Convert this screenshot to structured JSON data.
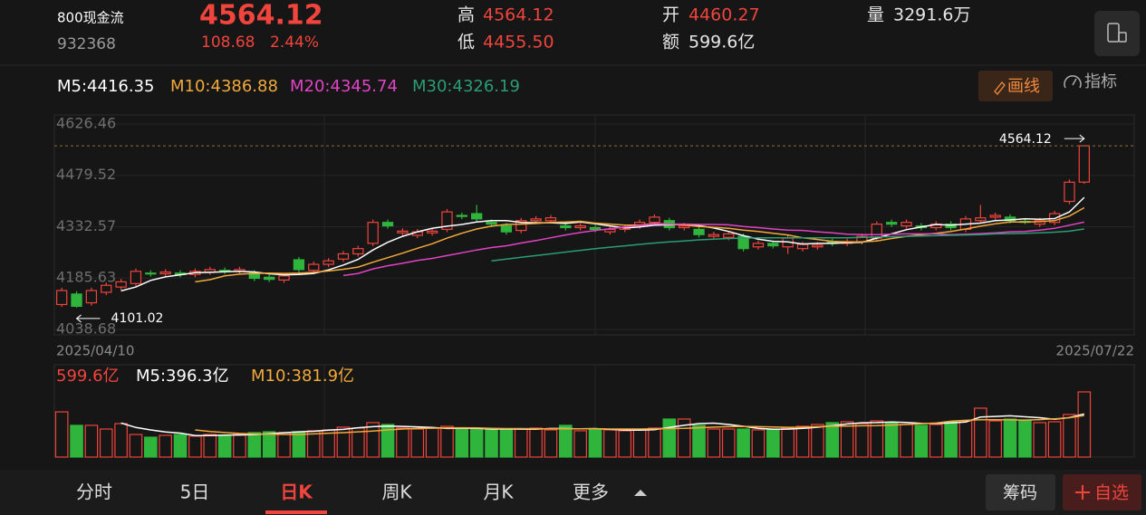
{
  "header": {
    "name": "800现金流",
    "code": "932368",
    "price": "4564.12",
    "change": "108.68",
    "change_pct": "2.44%",
    "high_label": "高",
    "high": "4564.12",
    "low_label": "低",
    "low": "4455.50",
    "open_label": "开",
    "open": "4460.27",
    "amount_label": "额",
    "amount": "599.6亿",
    "volume_label": "量",
    "volume": "3291.6万"
  },
  "toolbar": {
    "draw": "画线",
    "indicator": "指标"
  },
  "chart_data": [
    {
      "type": "candlestick",
      "categories": [
        "2025/04/10",
        null,
        null,
        null,
        null,
        null,
        null,
        null,
        null,
        null,
        null,
        null,
        null,
        null,
        null,
        null,
        null,
        null,
        null,
        null,
        null,
        null,
        null,
        null,
        null,
        null,
        null,
        null,
        null,
        null,
        null,
        null,
        null,
        null,
        null,
        null,
        null,
        null,
        null,
        null,
        null,
        null,
        null,
        null,
        null,
        null,
        null,
        null,
        null,
        null,
        null,
        null,
        null,
        null,
        null,
        null,
        null,
        null,
        null,
        null,
        null,
        null,
        null,
        null,
        null,
        null,
        null,
        null,
        null,
        "2025/07/22"
      ],
      "open": [
        4110,
        4140,
        4115,
        4145,
        4160,
        4170,
        4200,
        4198,
        4200,
        4196,
        4203,
        4208,
        4205,
        4200,
        4188,
        4180,
        4238,
        4208,
        4225,
        4240,
        4255,
        4285,
        4345,
        4315,
        4308,
        4315,
        4325,
        4365,
        4370,
        4345,
        4335,
        4322,
        4350,
        4350,
        4335,
        4330,
        4330,
        4318,
        4325,
        4335,
        4345,
        4350,
        4330,
        4325,
        4305,
        4302,
        4305,
        4275,
        4285,
        4275,
        4270,
        4275,
        4290,
        4285,
        4290,
        4300,
        4345,
        4335,
        4335,
        4330,
        4340,
        4325,
        4350,
        4360,
        4360,
        4348,
        4340,
        4345,
        4405,
        4460.27
      ],
      "high": [
        4158,
        4148,
        4158,
        4173,
        4183,
        4213,
        4208,
        4211,
        4208,
        4213,
        4218,
        4216,
        4218,
        4208,
        4196,
        4200,
        4246,
        4233,
        4243,
        4263,
        4278,
        4353,
        4353,
        4328,
        4326,
        4328,
        4383,
        4373,
        4395,
        4353,
        4343,
        4358,
        4363,
        4366,
        4343,
        4343,
        4338,
        4333,
        4338,
        4353,
        4368,
        4358,
        4343,
        4333,
        4318,
        4320,
        4313,
        4293,
        4293,
        4308,
        4290,
        4288,
        4298,
        4298,
        4313,
        4348,
        4353,
        4353,
        4343,
        4348,
        4348,
        4363,
        4395,
        4373,
        4368,
        4356,
        4358,
        4378,
        4468,
        4564.12
      ],
      "low": [
        4103,
        4101.02,
        4107,
        4137,
        4152,
        4162,
        4190,
        4190,
        4188,
        4188,
        4195,
        4197,
        4197,
        4177,
        4174,
        4172,
        4202,
        4200,
        4217,
        4232,
        4247,
        4277,
        4327,
        4307,
        4300,
        4307,
        4317,
        4354,
        4347,
        4332,
        4310,
        4314,
        4342,
        4342,
        4322,
        4322,
        4317,
        4310,
        4317,
        4327,
        4337,
        4322,
        4322,
        4302,
        4297,
        4294,
        4262,
        4267,
        4270,
        4255,
        4262,
        4267,
        4277,
        4277,
        4282,
        4292,
        4332,
        4327,
        4322,
        4322,
        4322,
        4317,
        4342,
        4352,
        4342,
        4340,
        4332,
        4337,
        4397,
        4455.5
      ],
      "close": [
        4150,
        4105,
        4150,
        4165,
        4175,
        4205,
        4198,
        4203,
        4196,
        4205,
        4210,
        4205,
        4210,
        4185,
        4182,
        4192,
        4210,
        4225,
        4235,
        4255,
        4270,
        4345,
        4335,
        4320,
        4318,
        4320,
        4375,
        4362,
        4355,
        4340,
        4318,
        4350,
        4355,
        4358,
        4330,
        4335,
        4325,
        4325,
        4330,
        4345,
        4360,
        4330,
        4335,
        4310,
        4310,
        4312,
        4270,
        4285,
        4278,
        4300,
        4282,
        4280,
        4285,
        4290,
        4305,
        4340,
        4340,
        4345,
        4330,
        4340,
        4330,
        4355,
        4358,
        4365,
        4350,
        4345,
        4350,
        4370,
        4460,
        4564.12
      ],
      "up_color": "#f0443c",
      "down_color": "#2fb43c",
      "ylim": [
        4038.68,
        4626.46
      ],
      "yticks": [
        4626.46,
        4479.52,
        4332.57,
        4185.63,
        4038.68
      ],
      "grid": true,
      "series": [
        {
          "label": "M5:4416.35",
          "color": "#ffffff",
          "values": [
            null,
            null,
            null,
            null,
            4149,
            4160,
            4179,
            4189,
            4195,
            4201,
            4202,
            4204,
            4205,
            4203,
            4198,
            4195,
            4196,
            4199,
            4209,
            4223,
            4239,
            4266,
            4288,
            4305,
            4318,
            4328,
            4334,
            4339,
            4346,
            4350,
            4350,
            4345,
            4344,
            4344,
            4342,
            4346,
            4341,
            4335,
            4329,
            4332,
            4337,
            4338,
            4340,
            4336,
            4329,
            4319,
            4307,
            4297,
            4291,
            4289,
            4283,
            4285,
            4285,
            4287,
            4288,
            4300,
            4312,
            4324,
            4332,
            4339,
            4337,
            4340,
            4343,
            4350,
            4352,
            4355,
            4354,
            4356,
            4375,
            4416.35
          ]
        },
        {
          "label": "M10:4386.88",
          "color": "#f2a93b",
          "values": [
            null,
            null,
            null,
            null,
            null,
            null,
            null,
            null,
            null,
            4175,
            4181,
            4192,
            4197,
            4199,
            4200,
            4199,
            4200,
            4202,
            4206,
            4211,
            4217,
            4231,
            4244,
            4257,
            4271,
            4284,
            4300,
            4314,
            4326,
            4334,
            4339,
            4340,
            4342,
            4345,
            4346,
            4348,
            4343,
            4340,
            4337,
            4337,
            4342,
            4340,
            4338,
            4333,
            4331,
            4328,
            4323,
            4319,
            4314,
            4309,
            4301,
            4296,
            4291,
            4289,
            4289,
            4292,
            4299,
            4305,
            4310,
            4314,
            4319,
            4326,
            4334,
            4341,
            4346,
            4346,
            4347,
            4350,
            4363,
            4386.88
          ]
        },
        {
          "label": "M20:4345.74",
          "color": "#e243c6",
          "values": [
            null,
            null,
            null,
            null,
            null,
            null,
            null,
            null,
            null,
            null,
            null,
            null,
            null,
            null,
            null,
            null,
            null,
            null,
            null,
            4193,
            4199,
            4212,
            4221,
            4228,
            4236,
            4242,
            4250,
            4258,
            4266,
            4273,
            4278,
            4286,
            4293,
            4301,
            4309,
            4316,
            4322,
            4327,
            4332,
            4336,
            4341,
            4340,
            4340,
            4339,
            4339,
            4338,
            4333,
            4330,
            4326,
            4323,
            4322,
            4318,
            4315,
            4311,
            4310,
            4310,
            4311,
            4312,
            4312,
            4312,
            4310,
            4311,
            4313,
            4315,
            4318,
            4319,
            4323,
            4328,
            4337,
            4345.74
          ]
        },
        {
          "label": "M30:4326.19",
          "color": "#2a9d74",
          "values": [
            null,
            null,
            null,
            null,
            null,
            null,
            null,
            null,
            null,
            null,
            null,
            null,
            null,
            null,
            null,
            null,
            null,
            null,
            null,
            null,
            null,
            null,
            null,
            null,
            null,
            null,
            null,
            null,
            null,
            4235,
            4240,
            4245,
            4250,
            4255,
            4260,
            4265,
            4270,
            4274,
            4278,
            4282,
            4286,
            4289,
            4292,
            4295,
            4297,
            4299,
            4300,
            4301,
            4301,
            4301,
            4301,
            4301,
            4301,
            4301,
            4302,
            4303,
            4304,
            4305,
            4306,
            4307,
            4308,
            4309,
            4310,
            4312,
            4313,
            4314,
            4315,
            4317,
            4320,
            4326.19
          ]
        }
      ],
      "annotations": [
        {
          "value": 4564.12,
          "at": 69
        },
        {
          "value": 4101.02,
          "at": 1
        }
      ]
    },
    {
      "type": "bar",
      "title": "599.6亿",
      "values": [
        416,
        292,
        292,
        258,
        308,
        208,
        183,
        200,
        208,
        192,
        208,
        200,
        208,
        225,
        233,
        225,
        233,
        242,
        250,
        275,
        267,
        317,
        300,
        267,
        258,
        267,
        283,
        267,
        258,
        258,
        250,
        258,
        267,
        250,
        292,
        242,
        250,
        250,
        242,
        250,
        267,
        350,
        350,
        292,
        258,
        258,
        258,
        250,
        250,
        267,
        283,
        300,
        317,
        325,
        308,
        333,
        317,
        300,
        292,
        300,
        325,
        333,
        450,
        333,
        350,
        342,
        317,
        325,
        392,
        599.6
      ],
      "series": [
        {
          "label": "M5:396.3亿",
          "color": "#ffffff",
          "values": [
            null,
            null,
            null,
            null,
            313,
            272,
            250,
            231,
            221,
            198,
            198,
            202,
            203,
            207,
            215,
            224,
            232,
            237,
            247,
            255,
            270,
            280,
            285,
            282,
            278,
            272,
            263,
            266,
            265,
            258,
            258,
            257,
            256,
            263,
            262,
            260,
            262,
            255,
            249,
            247,
            252,
            272,
            292,
            308,
            312,
            300,
            283,
            264,
            256,
            257,
            264,
            275,
            288,
            305,
            316,
            317,
            323,
            318,
            311,
            309,
            314,
            323,
            368,
            374,
            380,
            371,
            362,
            347,
            363,
            396.3
          ]
        },
        {
          "label": "M10:381.9亿",
          "color": "#f2a93b",
          "values": [
            null,
            null,
            null,
            null,
            null,
            null,
            null,
            null,
            null,
            250,
            235,
            226,
            217,
            212,
            210,
            208,
            208,
            213,
            220,
            225,
            232,
            240,
            250,
            258,
            263,
            266,
            268,
            270,
            268,
            265,
            262,
            262,
            260,
            260,
            260,
            260,
            260,
            258,
            258,
            258,
            260,
            262,
            264,
            270,
            276,
            280,
            282,
            280,
            277,
            274,
            275,
            280,
            284,
            286,
            288,
            290,
            295,
            300,
            307,
            313,
            330,
            338,
            343,
            344,
            342,
            340,
            345,
            352,
            362,
            381.9
          ]
        }
      ]
    }
  ],
  "tabs": [
    "分时",
    "5日",
    "日K",
    "周K",
    "月K",
    "更多"
  ],
  "active_tab": 2,
  "actions": [
    "筹码",
    "自选"
  ]
}
